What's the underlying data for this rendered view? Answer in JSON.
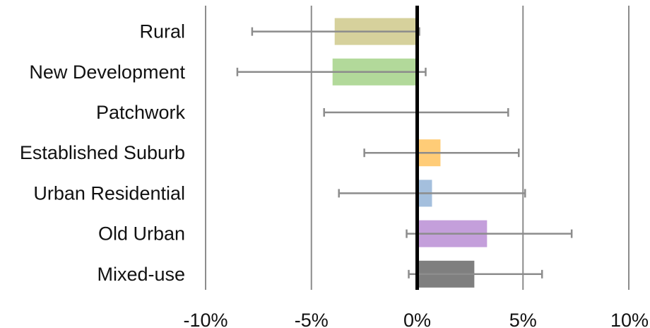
{
  "chart_data": {
    "type": "bar",
    "orientation": "horizontal",
    "title": "",
    "xlabel": "",
    "ylabel": "",
    "xlim": [
      -10,
      10
    ],
    "x_ticks": [
      -10,
      -5,
      0,
      5,
      10
    ],
    "x_tick_labels": [
      "-10%",
      "-5%",
      "0%",
      "5%",
      "10%"
    ],
    "grid": "vertical",
    "legend": "none",
    "categories": [
      "Rural",
      "New Development",
      "Patchwork",
      "Established Suburb",
      "Urban Residential",
      "Old Urban",
      "Mixed-use"
    ],
    "values": [
      -3.9,
      -4.0,
      0.0,
      1.1,
      0.7,
      3.3,
      2.7
    ],
    "error_low": [
      -7.8,
      -8.5,
      -4.4,
      -2.5,
      -3.7,
      -0.5,
      -0.4
    ],
    "error_high": [
      0.1,
      0.4,
      4.3,
      4.8,
      5.1,
      7.3,
      5.9
    ],
    "colors": [
      "#d6d19c",
      "#b2d99a",
      "#cccccc",
      "#ffcc77",
      "#a4bfdd",
      "#c49fdb",
      "#7f7f7f"
    ],
    "gridline_color": "#8c8c8c",
    "zero_line_color": "#000000",
    "errorbar_color": "#8c8c8c"
  }
}
